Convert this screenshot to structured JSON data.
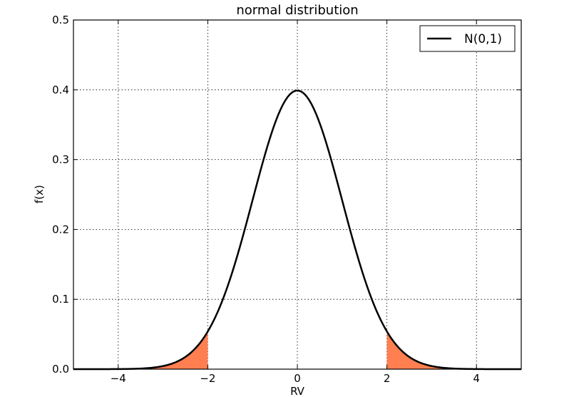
{
  "chart_data": {
    "type": "line",
    "title": "normal distribution",
    "xlabel": "RV",
    "ylabel": "f(x)",
    "xlim": [
      -5,
      5
    ],
    "ylim": [
      0,
      0.5
    ],
    "x_ticks": [
      -4,
      -2,
      0,
      2,
      4
    ],
    "x_tick_labels": [
      "−4",
      "−2",
      "0",
      "2",
      "4"
    ],
    "y_ticks": [
      0.0,
      0.1,
      0.2,
      0.3,
      0.4,
      0.5
    ],
    "y_tick_labels": [
      "0.0",
      "0.1",
      "0.2",
      "0.3",
      "0.4",
      "0.5"
    ],
    "grid": true,
    "legend_position": "top-right",
    "series": [
      {
        "name": "N(0,1)",
        "color": "#000000",
        "distribution": "normal",
        "mean": 0,
        "std": 1,
        "sample_points": [
          {
            "x": -5,
            "y": 0.0
          },
          {
            "x": -4,
            "y": 0.0001
          },
          {
            "x": -3,
            "y": 0.0044
          },
          {
            "x": -2,
            "y": 0.054
          },
          {
            "x": -1,
            "y": 0.242
          },
          {
            "x": 0,
            "y": 0.399
          },
          {
            "x": 1,
            "y": 0.242
          },
          {
            "x": 2,
            "y": 0.054
          },
          {
            "x": 3,
            "y": 0.0044
          },
          {
            "x": 4,
            "y": 0.0001
          },
          {
            "x": 5,
            "y": 0.0
          }
        ]
      }
    ],
    "shaded_regions": [
      {
        "from": -5,
        "to": -2,
        "color": "#ff7f50"
      },
      {
        "from": 2,
        "to": 5,
        "color": "#ff7f50"
      }
    ]
  }
}
